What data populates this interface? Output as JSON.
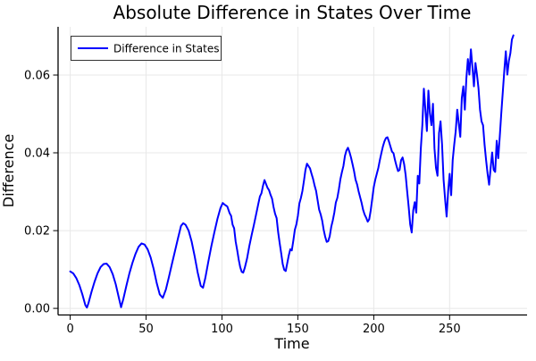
{
  "chart_data": {
    "type": "line",
    "title": "Absolute Difference in States Over Time",
    "xlabel": "Time",
    "ylabel": "Difference",
    "grid": true,
    "legend_position": "top-left",
    "xlim": [
      -8,
      301
    ],
    "ylim": [
      -0.0017,
      0.0724
    ],
    "xticks": [
      0,
      50,
      100,
      150,
      200,
      250
    ],
    "xtick_labels": [
      "0",
      "50",
      "100",
      "150",
      "200",
      "250"
    ],
    "yticks": [
      0.0,
      0.02,
      0.04,
      0.06
    ],
    "ytick_labels": [
      "0.00",
      "0.02",
      "0.04",
      "0.06"
    ],
    "colors": {
      "line": "#0000ff",
      "grid": "#e8e8e8",
      "axis": "#000000",
      "legend_border": "#333333",
      "background": "#ffffff"
    },
    "series": [
      {
        "name": "Difference in States",
        "color": "#0000ff",
        "points": [
          [
            0,
            0.0095
          ],
          [
            2,
            0.009
          ],
          [
            4,
            0.0078
          ],
          [
            6,
            0.006
          ],
          [
            8,
            0.0036
          ],
          [
            10,
            0.0008
          ],
          [
            11,
            0.0002
          ],
          [
            12,
            0.0013
          ],
          [
            14,
            0.0042
          ],
          [
            16,
            0.0068
          ],
          [
            18,
            0.009
          ],
          [
            20,
            0.0106
          ],
          [
            22,
            0.0114
          ],
          [
            24,
            0.0115
          ],
          [
            26,
            0.0106
          ],
          [
            28,
            0.0088
          ],
          [
            30,
            0.0062
          ],
          [
            32,
            0.0028
          ],
          [
            33.5,
            0.0003
          ],
          [
            35,
            0.0024
          ],
          [
            37,
            0.0058
          ],
          [
            39,
            0.009
          ],
          [
            41,
            0.0117
          ],
          [
            43,
            0.014
          ],
          [
            45,
            0.0158
          ],
          [
            47,
            0.0167
          ],
          [
            49,
            0.0164
          ],
          [
            51,
            0.0152
          ],
          [
            53,
            0.0131
          ],
          [
            55,
            0.0101
          ],
          [
            57,
            0.0065
          ],
          [
            59,
            0.0036
          ],
          [
            61,
            0.0027
          ],
          [
            63,
            0.0048
          ],
          [
            65,
            0.008
          ],
          [
            67,
            0.0114
          ],
          [
            69,
            0.0147
          ],
          [
            71,
            0.018
          ],
          [
            73,
            0.0212
          ],
          [
            74.5,
            0.0219
          ],
          [
            76,
            0.0215
          ],
          [
            78,
            0.02
          ],
          [
            80,
            0.0172
          ],
          [
            82,
            0.0134
          ],
          [
            84,
            0.0092
          ],
          [
            86,
            0.0058
          ],
          [
            87.5,
            0.0053
          ],
          [
            89,
            0.0078
          ],
          [
            91,
            0.012
          ],
          [
            93,
            0.016
          ],
          [
            95,
            0.0196
          ],
          [
            97,
            0.023
          ],
          [
            99,
            0.0258
          ],
          [
            100.5,
            0.0271
          ],
          [
            102,
            0.0266
          ],
          [
            103.5,
            0.0262
          ],
          [
            105,
            0.0245
          ],
          [
            106,
            0.0238
          ],
          [
            107,
            0.0215
          ],
          [
            108,
            0.0206
          ],
          [
            109,
            0.0172
          ],
          [
            110,
            0.015
          ],
          [
            111,
            0.0126
          ],
          [
            112,
            0.0106
          ],
          [
            113,
            0.0094
          ],
          [
            114,
            0.0092
          ],
          [
            115,
            0.0104
          ],
          [
            116.5,
            0.0128
          ],
          [
            118,
            0.016
          ],
          [
            119.5,
            0.0188
          ],
          [
            121,
            0.0214
          ],
          [
            122.5,
            0.0242
          ],
          [
            124,
            0.027
          ],
          [
            125,
            0.0288
          ],
          [
            126,
            0.0296
          ],
          [
            127,
            0.0315
          ],
          [
            128,
            0.033
          ],
          [
            129,
            0.032
          ],
          [
            130,
            0.031
          ],
          [
            131,
            0.0304
          ],
          [
            132,
            0.0292
          ],
          [
            133,
            0.0282
          ],
          [
            134,
            0.026
          ],
          [
            135,
            0.0243
          ],
          [
            136,
            0.0232
          ],
          [
            137,
            0.0196
          ],
          [
            138,
            0.0168
          ],
          [
            139,
            0.0142
          ],
          [
            140,
            0.0114
          ],
          [
            141,
            0.0099
          ],
          [
            142,
            0.0096
          ],
          [
            143,
            0.0116
          ],
          [
            144,
            0.0136
          ],
          [
            145,
            0.0152
          ],
          [
            146,
            0.0149
          ],
          [
            147,
            0.0174
          ],
          [
            148,
            0.0202
          ],
          [
            149,
            0.0216
          ],
          [
            150,
            0.0238
          ],
          [
            151,
            0.027
          ],
          [
            152,
            0.0284
          ],
          [
            153,
            0.0302
          ],
          [
            154,
            0.0328
          ],
          [
            155,
            0.0356
          ],
          [
            156,
            0.0372
          ],
          [
            157,
            0.0366
          ],
          [
            158,
            0.036
          ],
          [
            159,
            0.0346
          ],
          [
            160,
            0.0333
          ],
          [
            161,
            0.0316
          ],
          [
            162,
            0.0302
          ],
          [
            163,
            0.0278
          ],
          [
            164,
            0.0254
          ],
          [
            165,
            0.0242
          ],
          [
            166,
            0.0226
          ],
          [
            167,
            0.0202
          ],
          [
            168,
            0.0184
          ],
          [
            169,
            0.0171
          ],
          [
            170,
            0.0173
          ],
          [
            171,
            0.0186
          ],
          [
            172,
            0.021
          ],
          [
            173,
            0.0226
          ],
          [
            174,
            0.0246
          ],
          [
            175,
            0.0272
          ],
          [
            176,
            0.0284
          ],
          [
            177,
            0.0306
          ],
          [
            178,
            0.0332
          ],
          [
            179,
            0.035
          ],
          [
            180,
            0.0366
          ],
          [
            181,
            0.0392
          ],
          [
            182,
            0.0406
          ],
          [
            183,
            0.0413
          ],
          [
            184,
            0.0402
          ],
          [
            185,
            0.0388
          ],
          [
            186,
            0.0371
          ],
          [
            187,
            0.0353
          ],
          [
            188,
            0.0331
          ],
          [
            189,
            0.0319
          ],
          [
            190,
            0.0301
          ],
          [
            191,
            0.0286
          ],
          [
            192,
            0.0271
          ],
          [
            193,
            0.0253
          ],
          [
            194,
            0.0241
          ],
          [
            195,
            0.0233
          ],
          [
            196,
            0.0223
          ],
          [
            197,
            0.0229
          ],
          [
            198,
            0.0252
          ],
          [
            199,
            0.0282
          ],
          [
            200,
            0.0312
          ],
          [
            201,
            0.0331
          ],
          [
            202,
            0.0346
          ],
          [
            203,
            0.0361
          ],
          [
            204,
            0.0381
          ],
          [
            205,
            0.0399
          ],
          [
            206,
            0.0416
          ],
          [
            207,
            0.0429
          ],
          [
            208,
            0.0438
          ],
          [
            209,
            0.044
          ],
          [
            210,
            0.0429
          ],
          [
            211,
            0.0416
          ],
          [
            212,
            0.0403
          ],
          [
            213,
            0.0399
          ],
          [
            214,
            0.0381
          ],
          [
            215,
            0.0366
          ],
          [
            216,
            0.0353
          ],
          [
            217,
            0.0356
          ],
          [
            218,
            0.0381
          ],
          [
            219,
            0.0388
          ],
          [
            220,
            0.0371
          ],
          [
            221,
            0.0343
          ],
          [
            222,
            0.0301
          ],
          [
            223,
            0.0261
          ],
          [
            224,
            0.0216
          ],
          [
            225,
            0.0195
          ],
          [
            226,
            0.0252
          ],
          [
            227,
            0.0273
          ],
          [
            228,
            0.0246
          ],
          [
            229,
            0.0341
          ],
          [
            230,
            0.0321
          ],
          [
            231,
            0.0411
          ],
          [
            232,
            0.0471
          ],
          [
            233,
            0.0565
          ],
          [
            234,
            0.0511
          ],
          [
            235,
            0.0456
          ],
          [
            236,
            0.056
          ],
          [
            237,
            0.0501
          ],
          [
            238,
            0.0471
          ],
          [
            239,
            0.0526
          ],
          [
            240,
            0.0411
          ],
          [
            241,
            0.0361
          ],
          [
            242,
            0.0341
          ],
          [
            243,
            0.0451
          ],
          [
            244,
            0.0481
          ],
          [
            245,
            0.0421
          ],
          [
            246,
            0.0331
          ],
          [
            247,
            0.0281
          ],
          [
            248,
            0.0236
          ],
          [
            249,
            0.0301
          ],
          [
            250,
            0.0346
          ],
          [
            251,
            0.0291
          ],
          [
            252,
            0.0381
          ],
          [
            253,
            0.0421
          ],
          [
            254,
            0.0456
          ],
          [
            255,
            0.0511
          ],
          [
            256,
            0.0476
          ],
          [
            257,
            0.0441
          ],
          [
            258,
            0.0541
          ],
          [
            259,
            0.0571
          ],
          [
            260,
            0.0511
          ],
          [
            261,
            0.0591
          ],
          [
            262,
            0.0641
          ],
          [
            263,
            0.0601
          ],
          [
            264,
            0.0666
          ],
          [
            265,
            0.0621
          ],
          [
            266,
            0.0571
          ],
          [
            267,
            0.0631
          ],
          [
            268,
            0.0601
          ],
          [
            269,
            0.0566
          ],
          [
            270,
            0.0511
          ],
          [
            271,
            0.0481
          ],
          [
            272,
            0.0471
          ],
          [
            273,
            0.0421
          ],
          [
            274,
            0.0381
          ],
          [
            275,
            0.0346
          ],
          [
            276,
            0.0318
          ],
          [
            277,
            0.0361
          ],
          [
            278,
            0.0401
          ],
          [
            279,
            0.0356
          ],
          [
            280,
            0.0351
          ],
          [
            281,
            0.0431
          ],
          [
            282,
            0.0386
          ],
          [
            283,
            0.0441
          ],
          [
            284,
            0.0501
          ],
          [
            285,
            0.0556
          ],
          [
            286,
            0.0611
          ],
          [
            287,
            0.0661
          ],
          [
            288,
            0.0601
          ],
          [
            289,
            0.0636
          ],
          [
            290,
            0.0656
          ],
          [
            291,
            0.0691
          ],
          [
            292,
            0.0702
          ]
        ]
      }
    ]
  }
}
